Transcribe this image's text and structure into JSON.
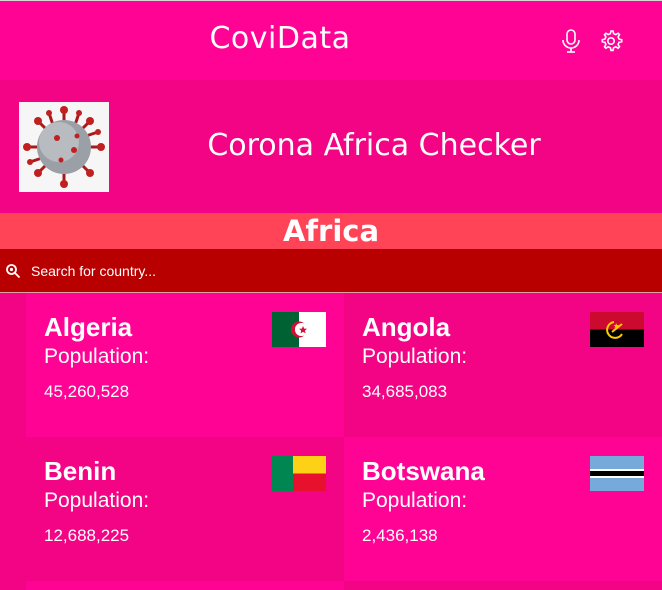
{
  "app": {
    "title": "CoviData"
  },
  "toolbar": {
    "mic_icon": "microphone-icon",
    "settings_icon": "gear-icon"
  },
  "header": {
    "title": "Corona Africa Checker",
    "image": "coronavirus-image"
  },
  "region": {
    "title": "Africa"
  },
  "search": {
    "placeholder": "Search for country...",
    "icon": "search-icon"
  },
  "countries": [
    {
      "name": "Algeria",
      "population_label": "Population:",
      "population": "45,260,528",
      "flag": "algeria-flag"
    },
    {
      "name": "Angola",
      "population_label": "Population:",
      "population": "34,685,083",
      "flag": "angola-flag"
    },
    {
      "name": "Benin",
      "population_label": "Population:",
      "population": "12,688,225",
      "flag": "benin-flag"
    },
    {
      "name": "Botswana",
      "population_label": "Population:",
      "population": "2,436,138",
      "flag": "botswana-flag"
    }
  ],
  "colors": {
    "primary": "#ff0395",
    "secondary": "#f20485",
    "region_bar": "#ff4458",
    "search_bar": "#b80000"
  }
}
